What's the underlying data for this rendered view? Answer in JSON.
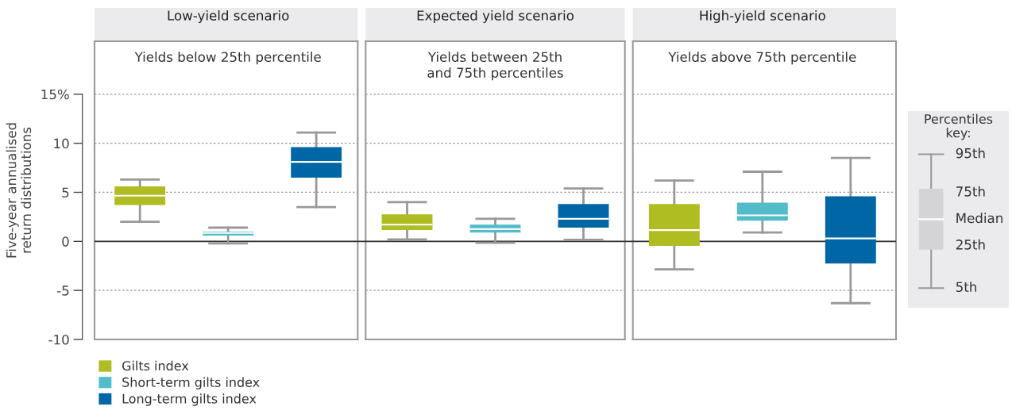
{
  "chart_data": [
    {
      "type": "box",
      "categories": [
        "Low-yield scenario",
        "Expected yield scenario",
        "High-yield scenario"
      ],
      "ylabel": "Five-year annualised\nreturn distributions",
      "ylim": [
        -10,
        20.4
      ],
      "yticks": [
        {
          "value": 15,
          "label": "15%"
        },
        10,
        5,
        0,
        -5,
        -10
      ],
      "grid": "y",
      "legend": "bottom left",
      "annotations": [
        "Yields below 25th percentile",
        "Yields between 25th\nand 75th percentiles",
        "Yields above 75th percentile"
      ],
      "ref_lines": [
        {
          "axis": "y",
          "value": 0,
          "color": "#333333"
        }
      ],
      "series": [
        {
          "name": "Gilts index",
          "color": "#afbc22",
          "boxes": [
            {
              "low": 2.0,
              "q1": 3.7,
              "median": 4.65,
              "q3": 5.6,
              "high": 6.3
            },
            {
              "low": 0.2,
              "q1": 1.15,
              "median": 1.7,
              "q3": 2.75,
              "high": 4.0
            },
            {
              "low": -2.85,
              "q1": -0.45,
              "median": 1.15,
              "q3": 3.8,
              "high": 6.2
            }
          ]
        },
        {
          "name": "Short-term gilts index",
          "color": "#52bdc8",
          "boxes": [
            {
              "low": -0.2,
              "q1": 0.6,
              "median": 0.85,
              "q3": 1.0,
              "high": 1.4
            },
            {
              "low": -0.15,
              "q1": 0.9,
              "median": 1.25,
              "q3": 1.7,
              "high": 2.3
            },
            {
              "low": 0.9,
              "q1": 2.1,
              "median": 2.65,
              "q3": 3.95,
              "high": 7.1
            }
          ]
        },
        {
          "name": "Long-term gilts index",
          "color": "#0066a6",
          "boxes": [
            {
              "low": 3.5,
              "q1": 6.5,
              "median": 8.1,
              "q3": 9.6,
              "high": 11.1
            },
            {
              "low": 0.15,
              "q1": 1.4,
              "median": 2.3,
              "q3": 3.8,
              "high": 5.4
            },
            {
              "low": -6.3,
              "q1": -2.25,
              "median": 0.3,
              "q3": 4.6,
              "high": 8.5
            }
          ]
        }
      ]
    },
    {
      "type": "other",
      "title": "Percentiles\nkey:",
      "annotations": [
        "95th",
        "75th",
        "Median",
        "25th",
        "5th"
      ]
    }
  ]
}
